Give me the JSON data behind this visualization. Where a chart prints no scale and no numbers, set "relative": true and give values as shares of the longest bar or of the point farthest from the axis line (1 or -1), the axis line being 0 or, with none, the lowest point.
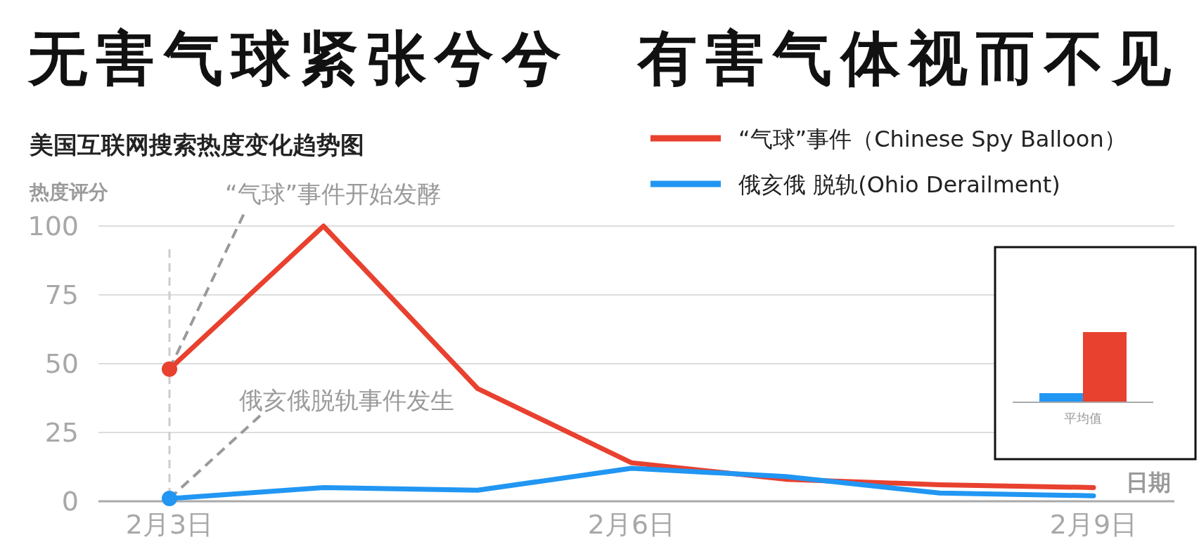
{
  "chart_data": [
    {
      "type": "line",
      "title": "无害气球紧张兮兮　有害气体视而不见",
      "subtitle": "美国互联网搜索热度变化趋势图",
      "ylabel": "热度评分",
      "xlabel": "日期",
      "categories": [
        "2月3日",
        null,
        null,
        "2月6日",
        null,
        null,
        "2月9日"
      ],
      "series": [
        {
          "name": "“气球”事件（Chinese Spy Balloon）",
          "color": "#e8412f",
          "values": [
            48,
            100,
            41,
            14,
            8,
            6,
            5
          ]
        },
        {
          "name": "俄亥俄 脱轨(Ohio Derailment)",
          "color": "#2196f3",
          "values": [
            1,
            5,
            4,
            12,
            9,
            3,
            2
          ]
        }
      ],
      "ylim": [
        0,
        100
      ],
      "yticks": [
        0,
        25,
        50,
        75,
        100
      ],
      "grid": "y",
      "legend": "top right",
      "marker": "none",
      "line_style": "solid",
      "ref_lines": [
        {
          "axis": "x",
          "value": "2月3日",
          "line_style": "dashed",
          "color": "#cccccc"
        }
      ],
      "annotations": [
        {
          "text": "“气球”事件开始发酵",
          "x": "2月3日",
          "y": 48
        },
        {
          "text": "俄亥俄脱轨事件发生",
          "x": "2月3日",
          "y": 1
        }
      ]
    },
    {
      "type": "bar",
      "relative": true,
      "categories": [
        "平均值"
      ],
      "series": [
        {
          "color": "#2196f3",
          "values": [
            0.13
          ]
        },
        {
          "color": "#e8412f",
          "values": [
            1
          ]
        }
      ]
    }
  ]
}
